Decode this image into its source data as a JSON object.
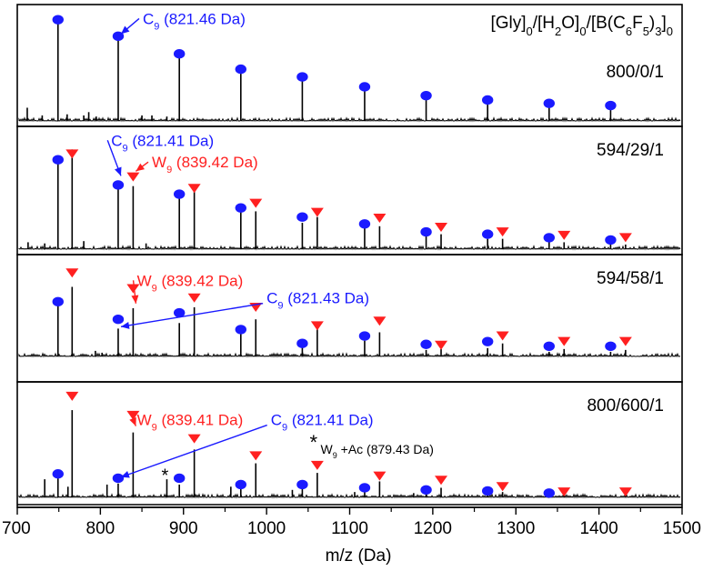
{
  "chart_data": {
    "type": "mass-spectrum-stacked",
    "xlabel": "m/z (Da)",
    "xlim": [
      700,
      1500
    ],
    "xticks": [
      "700",
      "800",
      "900",
      "1000",
      "1100",
      "1200",
      "1300",
      "1400",
      "1500"
    ],
    "legend": {
      "header_parts": [
        "[Gly]",
        "0",
        "/[H",
        "2",
        "O]",
        "0",
        "/[B(C",
        "6",
        "F",
        "5",
        ")",
        "3",
        "]",
        "0"
      ]
    },
    "colors": {
      "C_series": "#1a1aff",
      "W_series": "#ff2020",
      "axis": "#000000"
    },
    "panels": [
      {
        "ratio": "800/0/1",
        "peaks": [
          [
            749,
            0.95
          ],
          [
            821.46,
            0.74
          ],
          [
            895,
            0.58
          ],
          [
            969,
            0.43
          ],
          [
            1043,
            0.36
          ],
          [
            1118,
            0.27
          ],
          [
            1192,
            0.19
          ],
          [
            1266,
            0.15
          ],
          [
            1340,
            0.12
          ],
          [
            1414,
            0.1
          ],
          [
            712,
            0.12
          ],
          [
            730,
            0.05
          ],
          [
            760,
            0.06
          ],
          [
            780,
            0.05
          ],
          [
            786,
            0.08
          ],
          [
            795,
            0.04
          ],
          [
            850,
            0.05
          ],
          [
            862,
            0.05
          ],
          [
            880,
            0.04
          ]
        ],
        "markers": [
          {
            "s": "C",
            "x": 749,
            "h": 0.92
          },
          {
            "s": "C",
            "x": 821.46,
            "h": 0.77
          },
          {
            "s": "C",
            "x": 895,
            "h": 0.61
          },
          {
            "s": "C",
            "x": 969,
            "h": 0.47
          },
          {
            "s": "C",
            "x": 1043,
            "h": 0.4
          },
          {
            "s": "C",
            "x": 1118,
            "h": 0.31
          },
          {
            "s": "C",
            "x": 1192,
            "h": 0.23
          },
          {
            "s": "C",
            "x": 1266,
            "h": 0.19
          },
          {
            "s": "C",
            "x": 1340,
            "h": 0.16
          },
          {
            "s": "C",
            "x": 1414,
            "h": 0.14
          }
        ],
        "annotations": [
          {
            "color": "blue",
            "label": "C",
            "sub": "9",
            "rest": " (821.46 Da)",
            "peak_x": 821.46,
            "peak_h": 0.79,
            "text_x": 851,
            "text_h": 0.93
          }
        ]
      },
      {
        "ratio": "594/29/1",
        "peaks": [
          [
            749,
            0.8
          ],
          [
            766,
            0.87
          ],
          [
            821.41,
            0.55
          ],
          [
            839.42,
            0.55
          ],
          [
            895,
            0.46
          ],
          [
            913,
            0.5
          ],
          [
            969,
            0.38
          ],
          [
            987,
            0.33
          ],
          [
            1043,
            0.23
          ],
          [
            1061,
            0.28
          ],
          [
            1118,
            0.19
          ],
          [
            1136,
            0.2
          ],
          [
            1192,
            0.13
          ],
          [
            1210,
            0.13
          ],
          [
            1266,
            0.09
          ],
          [
            1284,
            0.09
          ],
          [
            1340,
            0.06
          ],
          [
            1358,
            0.06
          ],
          [
            1414,
            0.04
          ],
          [
            1432,
            0.04
          ],
          [
            713,
            0.06
          ],
          [
            733,
            0.05
          ],
          [
            780,
            0.07
          ],
          [
            855,
            0.05
          ]
        ],
        "markers": [
          {
            "s": "C",
            "x": 749,
            "h": 0.78
          },
          {
            "s": "W",
            "x": 766,
            "h": 0.83
          },
          {
            "s": "C",
            "x": 821.41,
            "h": 0.56
          },
          {
            "s": "W",
            "x": 839.42,
            "h": 0.63
          },
          {
            "s": "C",
            "x": 895,
            "h": 0.48
          },
          {
            "s": "W",
            "x": 913,
            "h": 0.53
          },
          {
            "s": "C",
            "x": 969,
            "h": 0.36
          },
          {
            "s": "W",
            "x": 987,
            "h": 0.4
          },
          {
            "s": "C",
            "x": 1043,
            "h": 0.28
          },
          {
            "s": "W",
            "x": 1061,
            "h": 0.32
          },
          {
            "s": "C",
            "x": 1118,
            "h": 0.22
          },
          {
            "s": "W",
            "x": 1136,
            "h": 0.27
          },
          {
            "s": "C",
            "x": 1192,
            "h": 0.15
          },
          {
            "s": "W",
            "x": 1210,
            "h": 0.19
          },
          {
            "s": "C",
            "x": 1266,
            "h": 0.13
          },
          {
            "s": "W",
            "x": 1284,
            "h": 0.15
          },
          {
            "s": "C",
            "x": 1340,
            "h": 0.1
          },
          {
            "s": "W",
            "x": 1358,
            "h": 0.12
          },
          {
            "s": "C",
            "x": 1414,
            "h": 0.08
          },
          {
            "s": "W",
            "x": 1432,
            "h": 0.1
          }
        ],
        "annotations": [
          {
            "color": "blue",
            "label": "C",
            "sub": "9",
            "rest": " (821.41 Da)",
            "peak_x": 821.41,
            "peak_h": 0.64,
            "text_x": 813,
            "text_h": 0.95
          },
          {
            "color": "red",
            "label": "W",
            "sub": "9",
            "rest": " (839.42 Da)",
            "peak_x": 839.42,
            "peak_h": 0.68,
            "text_x": 862,
            "text_h": 0.76
          }
        ]
      },
      {
        "ratio": "594/58/1",
        "peaks": [
          [
            749,
            0.55
          ],
          [
            766,
            0.75
          ],
          [
            821.43,
            0.3
          ],
          [
            839.42,
            0.52
          ],
          [
            895,
            0.36
          ],
          [
            913,
            0.53
          ],
          [
            969,
            0.24
          ],
          [
            987,
            0.4
          ],
          [
            1043,
            0.13
          ],
          [
            1061,
            0.3
          ],
          [
            1118,
            0.17
          ],
          [
            1136,
            0.26
          ],
          [
            1192,
            0.07
          ],
          [
            1210,
            0.08
          ],
          [
            1266,
            0.09
          ],
          [
            1284,
            0.14
          ],
          [
            1340,
            0.05
          ],
          [
            1358,
            0.08
          ],
          [
            1414,
            0.05
          ],
          [
            1432,
            0.07
          ],
          [
            794,
            0.06
          ],
          [
            802,
            0.04
          ]
        ],
        "markers": [
          {
            "s": "C",
            "x": 749,
            "h": 0.59
          },
          {
            "s": "W",
            "x": 766,
            "h": 0.9
          },
          {
            "s": "C",
            "x": 821.43,
            "h": 0.4
          },
          {
            "s": "W",
            "x": 839.42,
            "h": 0.73
          },
          {
            "s": "C",
            "x": 895,
            "h": 0.47
          },
          {
            "s": "W",
            "x": 913,
            "h": 0.63
          },
          {
            "s": "C",
            "x": 969,
            "h": 0.29
          },
          {
            "s": "W",
            "x": 987,
            "h": 0.53
          },
          {
            "s": "C",
            "x": 1043,
            "h": 0.14
          },
          {
            "s": "W",
            "x": 1061,
            "h": 0.33
          },
          {
            "s": "C",
            "x": 1118,
            "h": 0.22
          },
          {
            "s": "W",
            "x": 1136,
            "h": 0.38
          },
          {
            "s": "C",
            "x": 1192,
            "h": 0.13
          },
          {
            "s": "W",
            "x": 1210,
            "h": 0.12
          },
          {
            "s": "C",
            "x": 1266,
            "h": 0.16
          },
          {
            "s": "W",
            "x": 1284,
            "h": 0.22
          },
          {
            "s": "C",
            "x": 1340,
            "h": 0.11
          },
          {
            "s": "W",
            "x": 1358,
            "h": 0.16
          },
          {
            "s": "C",
            "x": 1414,
            "h": 0.11
          },
          {
            "s": "W",
            "x": 1432,
            "h": 0.16
          }
        ],
        "annotations": [
          {
            "color": "red",
            "label": "W",
            "sub": "9",
            "rest": " (839.42 Da)",
            "peak_x": 839.42,
            "peak_h": 0.57,
            "text_x": 844,
            "text_h": 0.82
          },
          {
            "color": "blue",
            "label": "C",
            "sub": "9",
            "rest": " (821.43 Da)",
            "peak_x": 821.43,
            "peak_h": 0.32,
            "text_x": 1000,
            "text_h": 0.63
          }
        ]
      },
      {
        "ratio": "800/600/1",
        "peaks": [
          [
            749,
            0.2
          ],
          [
            766,
            0.82
          ],
          [
            821.41,
            0.13
          ],
          [
            839.41,
            0.61
          ],
          [
            880,
            0.17
          ],
          [
            895,
            0.12
          ],
          [
            913,
            0.45
          ],
          [
            969,
            0.09
          ],
          [
            987,
            0.32
          ],
          [
            1043,
            0.09
          ],
          [
            1061,
            0.23
          ],
          [
            1118,
            0.06
          ],
          [
            1136,
            0.15
          ],
          [
            1192,
            0.06
          ],
          [
            1210,
            0.09
          ],
          [
            1266,
            0.04
          ],
          [
            1284,
            0.05
          ],
          [
            1340,
            0.03
          ],
          [
            1358,
            0.03
          ],
          [
            1432,
            0.02
          ],
          [
            733,
            0.17
          ],
          [
            761,
            0.1
          ],
          [
            808,
            0.12
          ],
          [
            957,
            0.1
          ],
          [
            1031,
            0.07
          ],
          [
            1106,
            0.05
          ],
          [
            1177,
            0.04
          ]
        ],
        "markers": [
          {
            "s": "C",
            "x": 749,
            "h": 0.22
          },
          {
            "s": "W",
            "x": 766,
            "h": 0.95
          },
          {
            "s": "C",
            "x": 821.41,
            "h": 0.18
          },
          {
            "s": "W",
            "x": 839.41,
            "h": 0.77
          },
          {
            "s": "C",
            "x": 895,
            "h": 0.18
          },
          {
            "s": "W",
            "x": 913,
            "h": 0.55
          },
          {
            "s": "C",
            "x": 969,
            "h": 0.12
          },
          {
            "s": "W",
            "x": 987,
            "h": 0.39
          },
          {
            "s": "C",
            "x": 1043,
            "h": 0.12
          },
          {
            "s": "W",
            "x": 1061,
            "h": 0.3
          },
          {
            "s": "C",
            "x": 1118,
            "h": 0.09
          },
          {
            "s": "W",
            "x": 1136,
            "h": 0.2
          },
          {
            "s": "C",
            "x": 1192,
            "h": 0.07
          },
          {
            "s": "W",
            "x": 1210,
            "h": 0.16
          },
          {
            "s": "C",
            "x": 1266,
            "h": 0.06
          },
          {
            "s": "W",
            "x": 1284,
            "h": 0.1
          },
          {
            "s": "C",
            "x": 1340,
            "h": 0.04
          },
          {
            "s": "W",
            "x": 1358,
            "h": 0.05
          },
          {
            "s": "W",
            "x": 1432,
            "h": 0.05
          }
        ],
        "annotations": [
          {
            "color": "red",
            "label": "W",
            "sub": "9",
            "rest": " (839.41 Da)",
            "peak_x": 839.41,
            "peak_h": 0.67,
            "text_x": 844,
            "text_h": 0.73
          },
          {
            "color": "blue",
            "label": "C",
            "sub": "9",
            "rest": " (821.41 Da)",
            "peak_x": 821.41,
            "peak_h": 0.19,
            "text_x": 1005,
            "text_h": 0.73
          }
        ],
        "extra": {
          "star": "*",
          "star_x": 880,
          "star_h": 0.2,
          "note_star": "*",
          "note_label": "W",
          "note_sub": "9",
          "note_rest": " +Ac (879.43 Da)",
          "note_x": 1065,
          "note_h": 0.47
        }
      }
    ]
  }
}
